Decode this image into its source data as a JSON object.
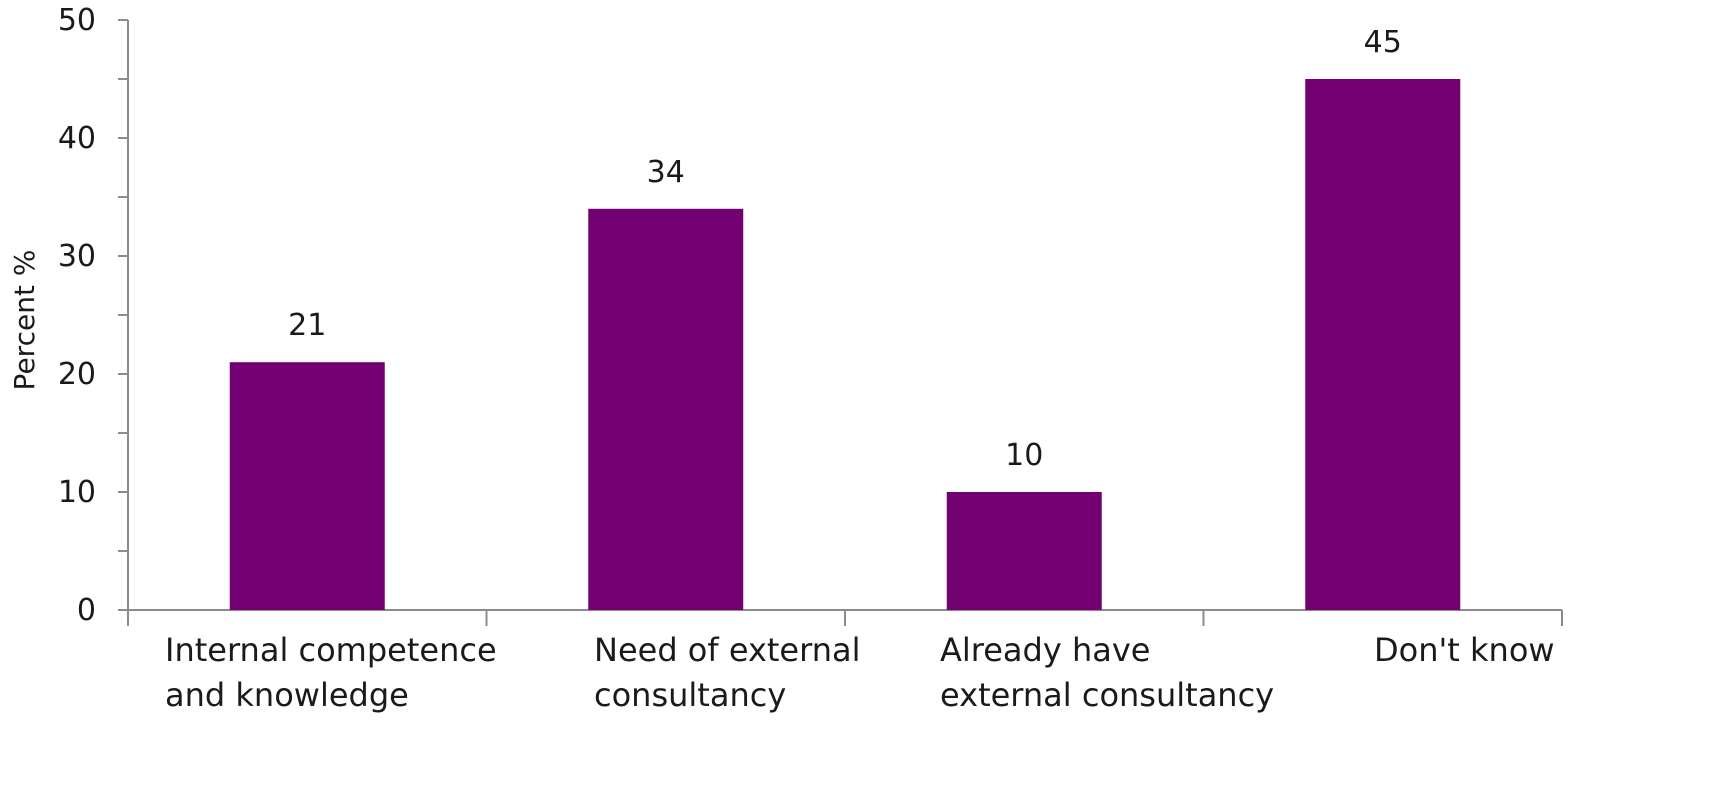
{
  "chart_data": {
    "type": "bar",
    "categories": [
      [
        "Internal competence",
        "and knowledge"
      ],
      [
        "Need of external",
        "consultancy"
      ],
      [
        "Already have",
        "external consultancy"
      ],
      [
        "Don't know"
      ]
    ],
    "values": [
      21,
      34,
      10,
      45
    ],
    "data_labels": [
      "21",
      "34",
      "10",
      "45"
    ],
    "title": "",
    "xlabel": "",
    "ylabel": "Percent %",
    "ylim": [
      0,
      50
    ],
    "yticks": [
      0,
      10,
      20,
      30,
      40,
      50
    ],
    "grid": false,
    "legend": "none",
    "bar_color": "#730070",
    "axis_color": "#8c8c8c"
  }
}
